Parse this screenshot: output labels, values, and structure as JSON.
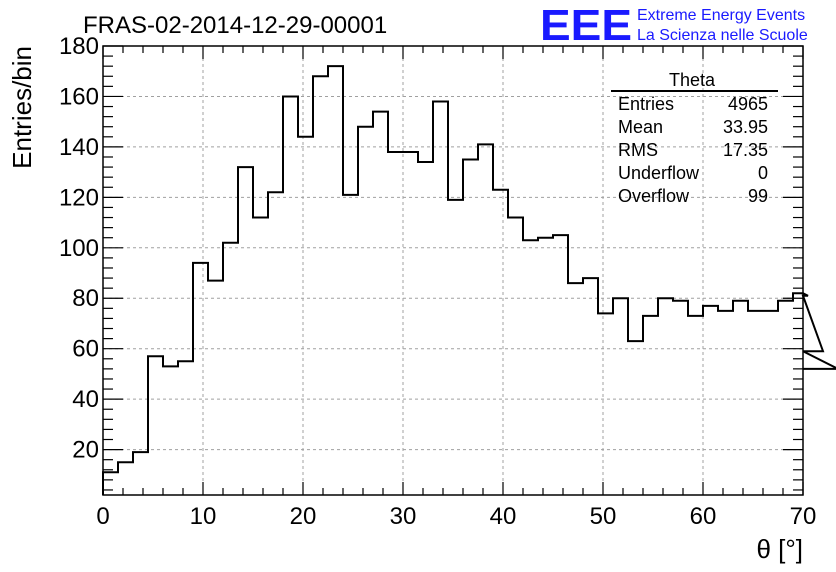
{
  "chart_data": {
    "type": "histogram",
    "title": "FRAS-02-2014-12-29-00001",
    "xlabel": "θ [°]",
    "ylabel": "Entries/bin",
    "xlim": [
      0,
      70
    ],
    "ylim": [
      2,
      180
    ],
    "x_ticks": [
      0,
      10,
      20,
      30,
      40,
      50,
      60,
      70
    ],
    "y_ticks": [
      20,
      40,
      60,
      80,
      100,
      120,
      140,
      160,
      180
    ],
    "grid": true,
    "bin_width": 1.5,
    "bin_start": 0,
    "values": [
      11,
      15,
      19,
      57,
      53,
      55,
      94,
      87,
      102,
      132,
      112,
      122,
      160,
      144,
      168,
      172,
      121,
      148,
      154,
      138,
      138,
      134,
      158,
      119,
      135,
      141,
      123,
      112,
      103,
      104,
      105,
      86,
      88,
      74,
      80,
      63,
      73,
      80,
      79,
      73,
      77,
      75,
      79,
      75,
      75,
      79,
      82,
      81,
      59,
      52
    ],
    "stats_box": {
      "name": "Theta",
      "rows": [
        {
          "label": "Entries",
          "value": "4965"
        },
        {
          "label": "Mean",
          "value": "33.95"
        },
        {
          "label": "RMS",
          "value": "17.35"
        },
        {
          "label": "Underflow",
          "value": "0"
        },
        {
          "label": "Overflow",
          "value": "99"
        }
      ]
    }
  },
  "logo": {
    "mark": "EEE",
    "line1": "Extreme Energy Events",
    "line2": "La Scienza nelle Scuole",
    "color": "#1a1aff"
  },
  "colors": {
    "line": "#000000",
    "grid": "#a0a0a0"
  }
}
